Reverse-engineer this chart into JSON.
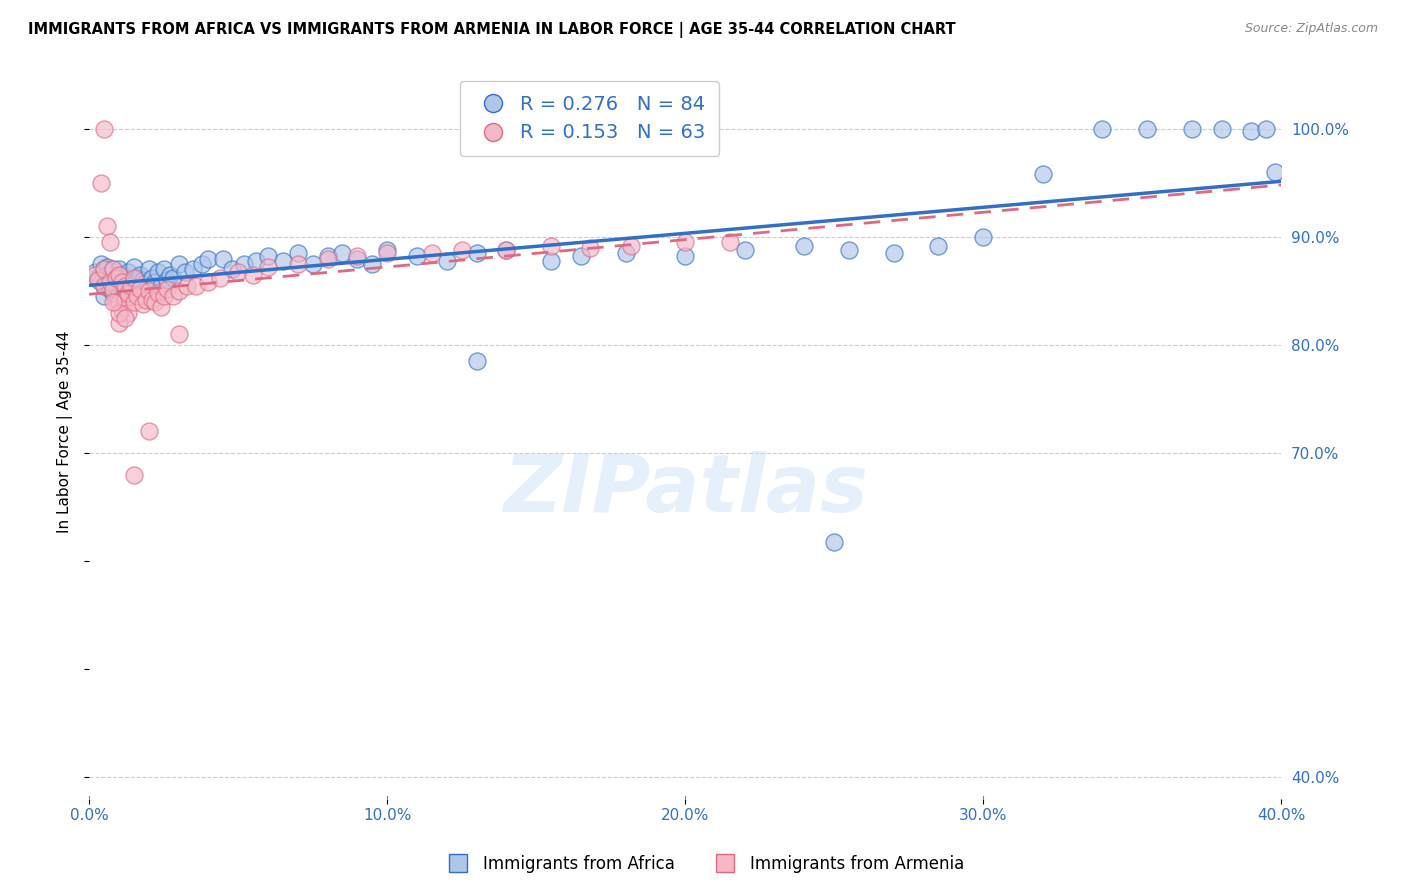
{
  "title": "IMMIGRANTS FROM AFRICA VS IMMIGRANTS FROM ARMENIA IN LABOR FORCE | AGE 35-44 CORRELATION CHART",
  "source": "Source: ZipAtlas.com",
  "ylabel": "In Labor Force | Age 35-44",
  "r_africa": 0.276,
  "n_africa": 84,
  "r_armenia": 0.153,
  "n_armenia": 63,
  "color_africa": "#aec6e8",
  "color_armenia": "#f4b8c8",
  "trendline_africa_color": "#3070c8",
  "trendline_armenia_color": "#e06880",
  "watermark": "ZIPatlas",
  "xlim": [
    0.0,
    0.4
  ],
  "ylim": [
    0.38,
    1.06
  ],
  "xtick_labels": [
    "0.0%",
    "10.0%",
    "20.0%",
    "30.0%",
    "40.0%"
  ],
  "xtick_values": [
    0.0,
    0.1,
    0.2,
    0.3,
    0.4
  ],
  "ytick_right_labels": [
    "100.0%",
    "90.0%",
    "80.0%",
    "70.0%",
    "40.0%"
  ],
  "ytick_right_values": [
    1.0,
    0.9,
    0.8,
    0.7,
    0.4
  ],
  "africa_x": [
    0.002,
    0.003,
    0.004,
    0.004,
    0.005,
    0.005,
    0.005,
    0.006,
    0.006,
    0.006,
    0.007,
    0.007,
    0.008,
    0.008,
    0.008,
    0.009,
    0.009,
    0.01,
    0.01,
    0.01,
    0.011,
    0.011,
    0.012,
    0.012,
    0.013,
    0.013,
    0.014,
    0.015,
    0.015,
    0.016,
    0.017,
    0.018,
    0.019,
    0.02,
    0.021,
    0.022,
    0.023,
    0.024,
    0.025,
    0.026,
    0.027,
    0.028,
    0.03,
    0.032,
    0.035,
    0.038,
    0.04,
    0.045,
    0.048,
    0.052,
    0.056,
    0.06,
    0.065,
    0.07,
    0.075,
    0.08,
    0.085,
    0.09,
    0.095,
    0.1,
    0.11,
    0.12,
    0.13,
    0.14,
    0.155,
    0.165,
    0.18,
    0.2,
    0.22,
    0.24,
    0.255,
    0.27,
    0.285,
    0.3,
    0.32,
    0.34,
    0.355,
    0.37,
    0.38,
    0.39,
    0.395,
    0.398,
    0.25,
    0.13
  ],
  "africa_y": [
    0.868,
    0.862,
    0.875,
    0.858,
    0.87,
    0.855,
    0.845,
    0.872,
    0.858,
    0.865,
    0.86,
    0.852,
    0.87,
    0.858,
    0.848,
    0.862,
    0.855,
    0.87,
    0.858,
    0.85,
    0.865,
    0.855,
    0.862,
    0.85,
    0.868,
    0.855,
    0.86,
    0.858,
    0.872,
    0.862,
    0.865,
    0.86,
    0.858,
    0.87,
    0.862,
    0.858,
    0.868,
    0.855,
    0.87,
    0.86,
    0.865,
    0.862,
    0.875,
    0.868,
    0.87,
    0.875,
    0.88,
    0.88,
    0.87,
    0.875,
    0.878,
    0.882,
    0.878,
    0.885,
    0.875,
    0.882,
    0.885,
    0.88,
    0.875,
    0.888,
    0.882,
    0.878,
    0.885,
    0.888,
    0.878,
    0.882,
    0.885,
    0.882,
    0.888,
    0.892,
    0.888,
    0.885,
    0.892,
    0.9,
    0.958,
    1.0,
    1.0,
    1.0,
    1.0,
    0.998,
    1.0,
    0.96,
    0.618,
    0.785
  ],
  "armenia_x": [
    0.002,
    0.003,
    0.004,
    0.005,
    0.005,
    0.006,
    0.007,
    0.007,
    0.008,
    0.008,
    0.009,
    0.009,
    0.01,
    0.01,
    0.011,
    0.011,
    0.012,
    0.012,
    0.013,
    0.013,
    0.014,
    0.015,
    0.015,
    0.016,
    0.017,
    0.018,
    0.019,
    0.02,
    0.021,
    0.022,
    0.023,
    0.024,
    0.025,
    0.026,
    0.028,
    0.03,
    0.033,
    0.036,
    0.04,
    0.044,
    0.05,
    0.055,
    0.06,
    0.07,
    0.08,
    0.09,
    0.1,
    0.115,
    0.125,
    0.14,
    0.155,
    0.168,
    0.182,
    0.2,
    0.215,
    0.01,
    0.02,
    0.015,
    0.03,
    0.005,
    0.01,
    0.008,
    0.012
  ],
  "armenia_y": [
    0.865,
    0.86,
    0.95,
    0.87,
    0.855,
    0.91,
    0.858,
    0.895,
    0.87,
    0.852,
    0.862,
    0.84,
    0.865,
    0.84,
    0.858,
    0.832,
    0.855,
    0.842,
    0.848,
    0.83,
    0.855,
    0.862,
    0.84,
    0.845,
    0.852,
    0.838,
    0.842,
    0.85,
    0.842,
    0.84,
    0.848,
    0.835,
    0.845,
    0.852,
    0.845,
    0.85,
    0.855,
    0.855,
    0.858,
    0.862,
    0.868,
    0.865,
    0.872,
    0.875,
    0.88,
    0.882,
    0.885,
    0.885,
    0.888,
    0.888,
    0.892,
    0.89,
    0.892,
    0.895,
    0.895,
    0.82,
    0.72,
    0.68,
    0.81,
    1.0,
    0.83,
    0.84,
    0.825
  ]
}
